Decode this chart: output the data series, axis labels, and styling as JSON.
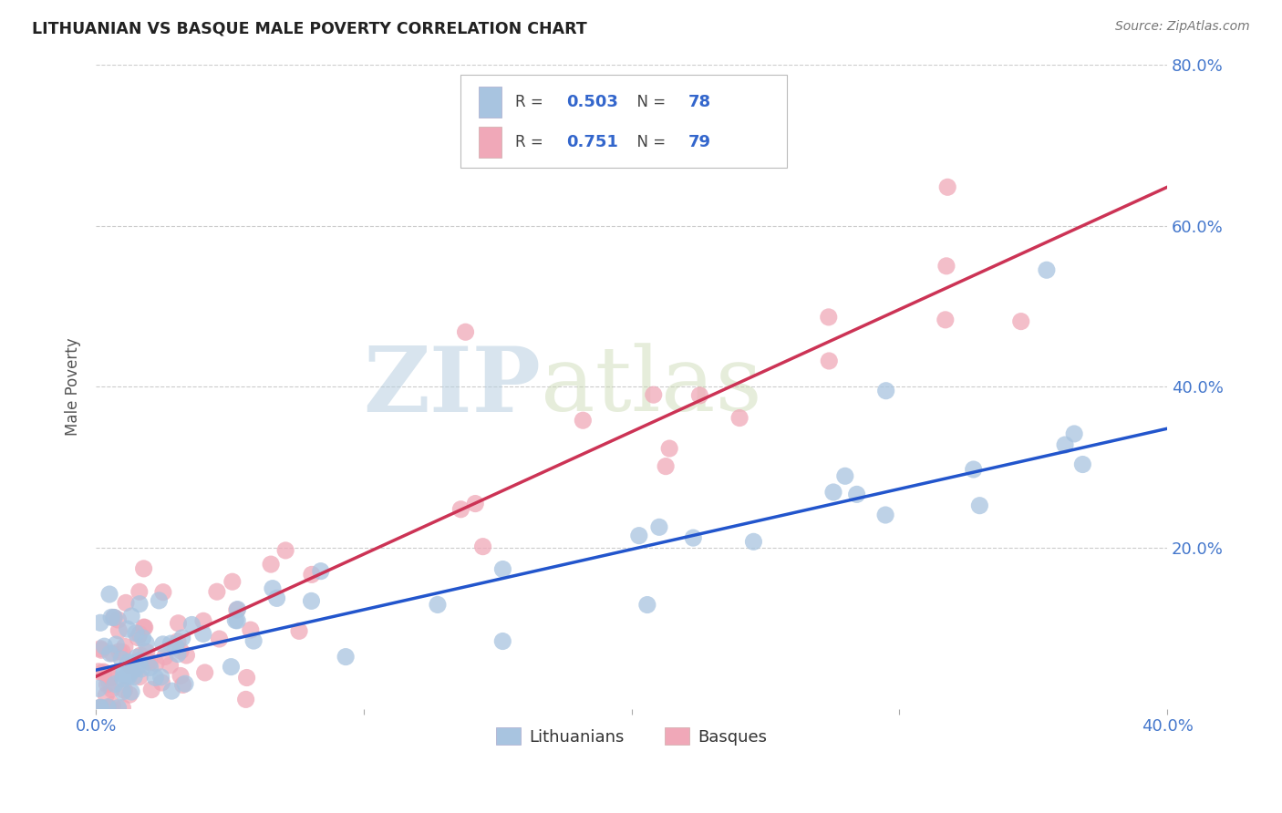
{
  "title": "LITHUANIAN VS BASQUE MALE POVERTY CORRELATION CHART",
  "source": "Source: ZipAtlas.com",
  "ylabel": "Male Poverty",
  "xlim": [
    0.0,
    0.4
  ],
  "ylim": [
    0.0,
    0.8
  ],
  "background_color": "#ffffff",
  "grid_color": "#cccccc",
  "lithuanian_color": "#a8c4e0",
  "basque_color": "#f0a8b8",
  "lithuanian_line_color": "#2255cc",
  "basque_line_color": "#cc3355",
  "R_lithuanian": 0.503,
  "N_lithuanian": 78,
  "R_basque": 0.751,
  "N_basque": 79,
  "watermark_ZIP": "ZIP",
  "watermark_atlas": "atlas",
  "legend_label_1": "Lithuanians",
  "legend_label_2": "Basques",
  "lith_slope": 0.75,
  "lith_intercept": 0.048,
  "basq_slope": 1.52,
  "basq_intercept": 0.04
}
